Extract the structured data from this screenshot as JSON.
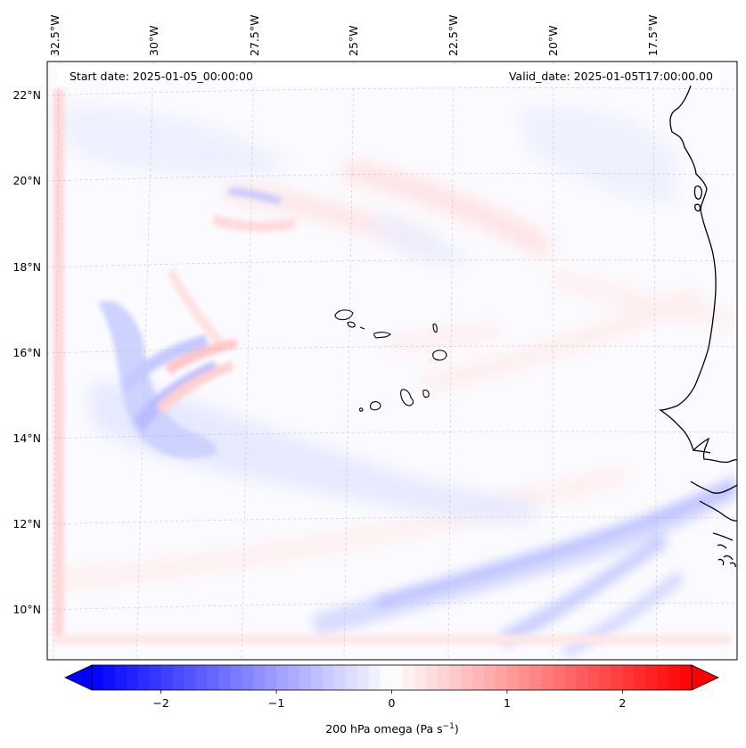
{
  "header": {
    "start_date": "Start date: 2025-01-05_00:00:00",
    "valid_date": "Valid_date: 2025-01-05T17:00:00.00"
  },
  "map": {
    "longitude_labels": [
      "32.5°W",
      "30°W",
      "27.5°W",
      "25°W",
      "22.5°W",
      "20°W",
      "17.5°W"
    ],
    "latitude_labels": [
      "22°N",
      "20°N",
      "18°N",
      "16°N",
      "14°N",
      "12°N",
      "10°N"
    ],
    "variable": "200 hPa omega",
    "region": "Cabo Verde and West African coast"
  },
  "colorbar": {
    "label_prefix": "200 hPa omega (Pa s",
    "label_exponent": "−1",
    "label_suffix": ")",
    "ticks": [
      "−2",
      "−1",
      "0",
      "1",
      "2"
    ],
    "tick_values": [
      -2,
      -1,
      0,
      1,
      2
    ],
    "range": [
      -2.6,
      2.6
    ],
    "colormap": "bwr",
    "colors": {
      "min": "#0000ff",
      "mid": "#ffffff",
      "max": "#ff0000"
    }
  }
}
